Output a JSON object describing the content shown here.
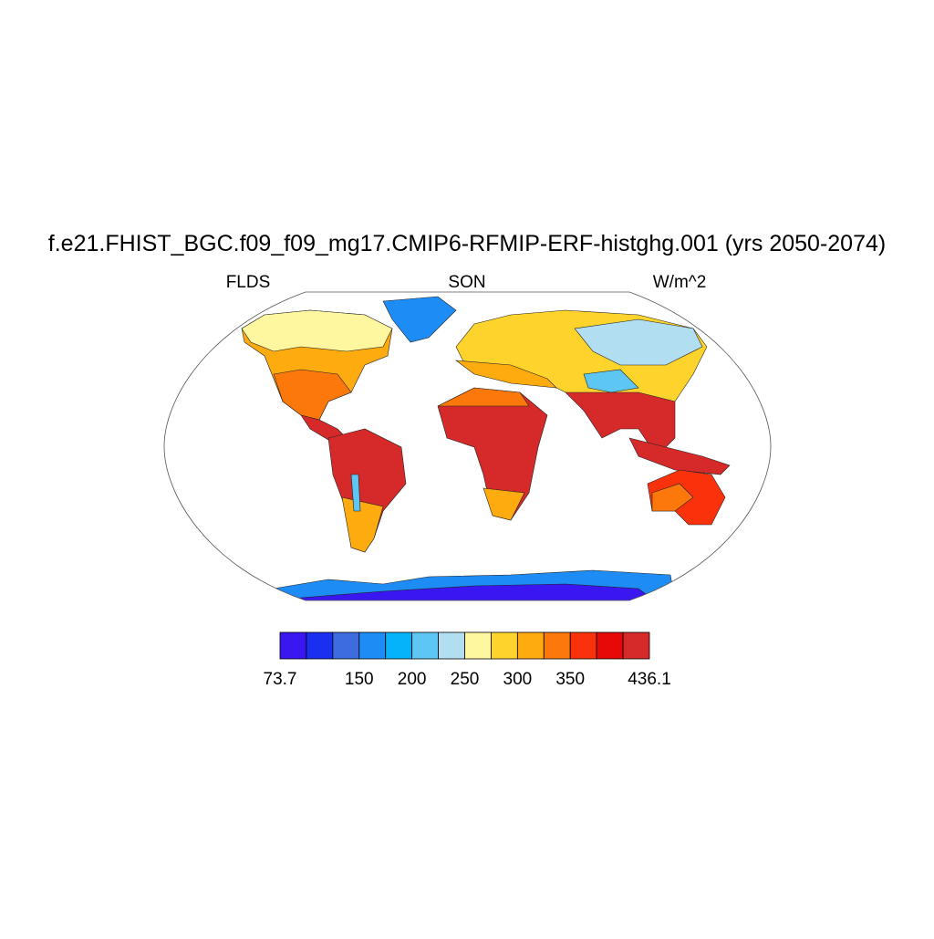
{
  "header": {
    "title": "f.e21.FHIST_BGC.f09_f09_mg17.CMIP6-RFMIP-ERF-histghg.001 (yrs 2050-2074)",
    "left": "FLDS",
    "center": "SON",
    "right": "W/m^2"
  },
  "colorbar": {
    "colors": [
      "#3a16f0",
      "#1a2ff0",
      "#3d6be0",
      "#1e8cf5",
      "#04b3fa",
      "#5ec6f2",
      "#b2def2",
      "#fff7a0",
      "#fed42c",
      "#fdab0e",
      "#fc780a",
      "#f9320c",
      "#e70808",
      "#d62a2a"
    ],
    "ticks": [
      {
        "value": 73.7,
        "label": "73.7"
      },
      150,
      200,
      250,
      300,
      350,
      {
        "value": 436.1,
        "label": "436.1"
      }
    ]
  }
}
